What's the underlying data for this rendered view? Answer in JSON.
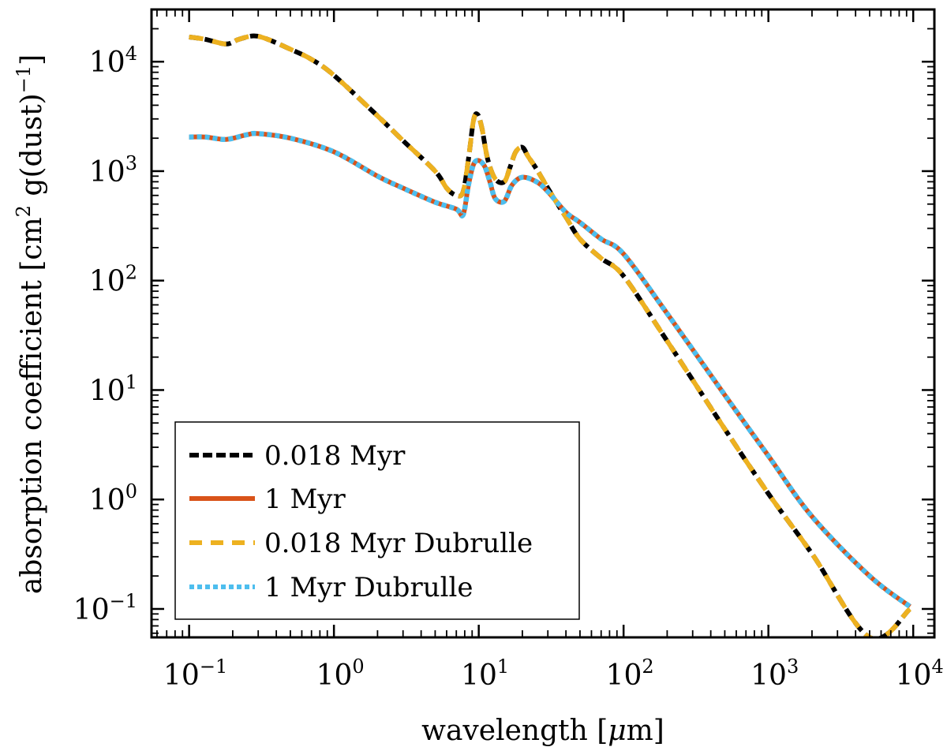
{
  "chart_data": {
    "type": "line",
    "xscale": "log",
    "yscale": "log",
    "xlim": [
      0.055,
      14000
    ],
    "ylim": [
      0.055,
      30000
    ],
    "xlabel": {
      "prefix": "wavelength [",
      "mu": "μ",
      "suffix": "m]"
    },
    "ylabel": {
      "prefix": "absorption coefficient [cm",
      "sup1": "2",
      "mid": " g(dust)",
      "sup2": "−1",
      "suffix": "]"
    },
    "x_ticks": [
      {
        "base": "10",
        "exp": "−1",
        "value": 0.1
      },
      {
        "base": "10",
        "exp": "0",
        "value": 1
      },
      {
        "base": "10",
        "exp": "1",
        "value": 10
      },
      {
        "base": "10",
        "exp": "2",
        "value": 100
      },
      {
        "base": "10",
        "exp": "3",
        "value": 1000
      },
      {
        "base": "10",
        "exp": "4",
        "value": 10000
      }
    ],
    "y_ticks": [
      {
        "base": "10",
        "exp": "−1",
        "value": 0.1
      },
      {
        "base": "10",
        "exp": "0",
        "value": 1
      },
      {
        "base": "10",
        "exp": "1",
        "value": 10
      },
      {
        "base": "10",
        "exp": "2",
        "value": 100
      },
      {
        "base": "10",
        "exp": "3",
        "value": 1000
      },
      {
        "base": "10",
        "exp": "4",
        "value": 10000
      }
    ],
    "legend_position": "lower-left",
    "series": [
      {
        "name": "0.018 Myr",
        "color": "#000000",
        "style": "dashed",
        "x": [
          0.1,
          0.13,
          0.18,
          0.22,
          0.28,
          0.35,
          0.5,
          0.7,
          1.0,
          2.0,
          3.0,
          5.0,
          6.0,
          7.0,
          7.8,
          8.5,
          9.2,
          9.8,
          10.5,
          11.5,
          13,
          15,
          16.5,
          18,
          20,
          22,
          25,
          30,
          35,
          40,
          50,
          70,
          100,
          200,
          500,
          1000,
          2000,
          5000,
          9500
        ],
        "y": [
          16800,
          16000,
          14500,
          16000,
          17200,
          16000,
          13000,
          10500,
          7500,
          3200,
          1900,
          1000,
          700,
          600,
          650,
          1300,
          2900,
          3300,
          2500,
          1300,
          850,
          800,
          1100,
          1500,
          1650,
          1350,
          1050,
          700,
          500,
          380,
          240,
          160,
          110,
          28,
          4.4,
          1.13,
          0.32,
          0.055,
          0.1
        ]
      },
      {
        "name": "1 Myr",
        "color": "#d95319",
        "style": "solid",
        "x": [
          0.1,
          0.13,
          0.18,
          0.25,
          0.3,
          0.5,
          1.0,
          2.0,
          3.0,
          5.0,
          7.0,
          7.8,
          8.5,
          9.2,
          10,
          11,
          12,
          13,
          15,
          17,
          20,
          25,
          30,
          40,
          50,
          70,
          100,
          200,
          500,
          1000,
          2000,
          5000,
          9500
        ],
        "y": [
          2050,
          2050,
          1950,
          2150,
          2200,
          2000,
          1500,
          900,
          700,
          520,
          450,
          400,
          750,
          1150,
          1250,
          1100,
          780,
          560,
          530,
          750,
          880,
          800,
          650,
          420,
          340,
          240,
          175,
          50,
          9.0,
          2.5,
          0.7,
          0.2,
          0.105
        ]
      },
      {
        "name": "0.018 Myr Dubrulle",
        "color": "#edb120",
        "style": "dashed-wide",
        "x": [
          0.1,
          0.13,
          0.18,
          0.22,
          0.28,
          0.35,
          0.5,
          0.7,
          1.0,
          2.0,
          3.0,
          5.0,
          6.0,
          7.0,
          7.8,
          8.5,
          9.2,
          9.8,
          10.5,
          11.5,
          13,
          15,
          16.5,
          18,
          20,
          22,
          25,
          30,
          35,
          40,
          50,
          70,
          100,
          200,
          500,
          1000,
          2000,
          5000,
          9500
        ],
        "y": [
          16800,
          16000,
          14500,
          16000,
          17200,
          16000,
          13000,
          10500,
          7500,
          3200,
          1900,
          1000,
          700,
          600,
          650,
          1300,
          2900,
          3300,
          2500,
          1300,
          850,
          800,
          1100,
          1500,
          1650,
          1350,
          1050,
          700,
          500,
          380,
          240,
          160,
          110,
          28,
          4.4,
          1.13,
          0.32,
          0.055,
          0.1
        ]
      },
      {
        "name": "1 Myr Dubrulle",
        "color": "#4dbeee",
        "style": "dotted",
        "x": [
          0.1,
          0.13,
          0.18,
          0.25,
          0.3,
          0.5,
          1.0,
          2.0,
          3.0,
          5.0,
          7.0,
          7.8,
          8.5,
          9.2,
          10,
          11,
          12,
          13,
          15,
          17,
          20,
          25,
          30,
          40,
          50,
          70,
          100,
          200,
          500,
          1000,
          2000,
          5000,
          9500
        ],
        "y": [
          2050,
          2050,
          1950,
          2150,
          2200,
          2000,
          1500,
          900,
          700,
          520,
          450,
          400,
          750,
          1150,
          1250,
          1100,
          780,
          560,
          530,
          750,
          880,
          800,
          650,
          420,
          340,
          240,
          175,
          50,
          9.0,
          2.5,
          0.7,
          0.2,
          0.105
        ]
      }
    ]
  }
}
